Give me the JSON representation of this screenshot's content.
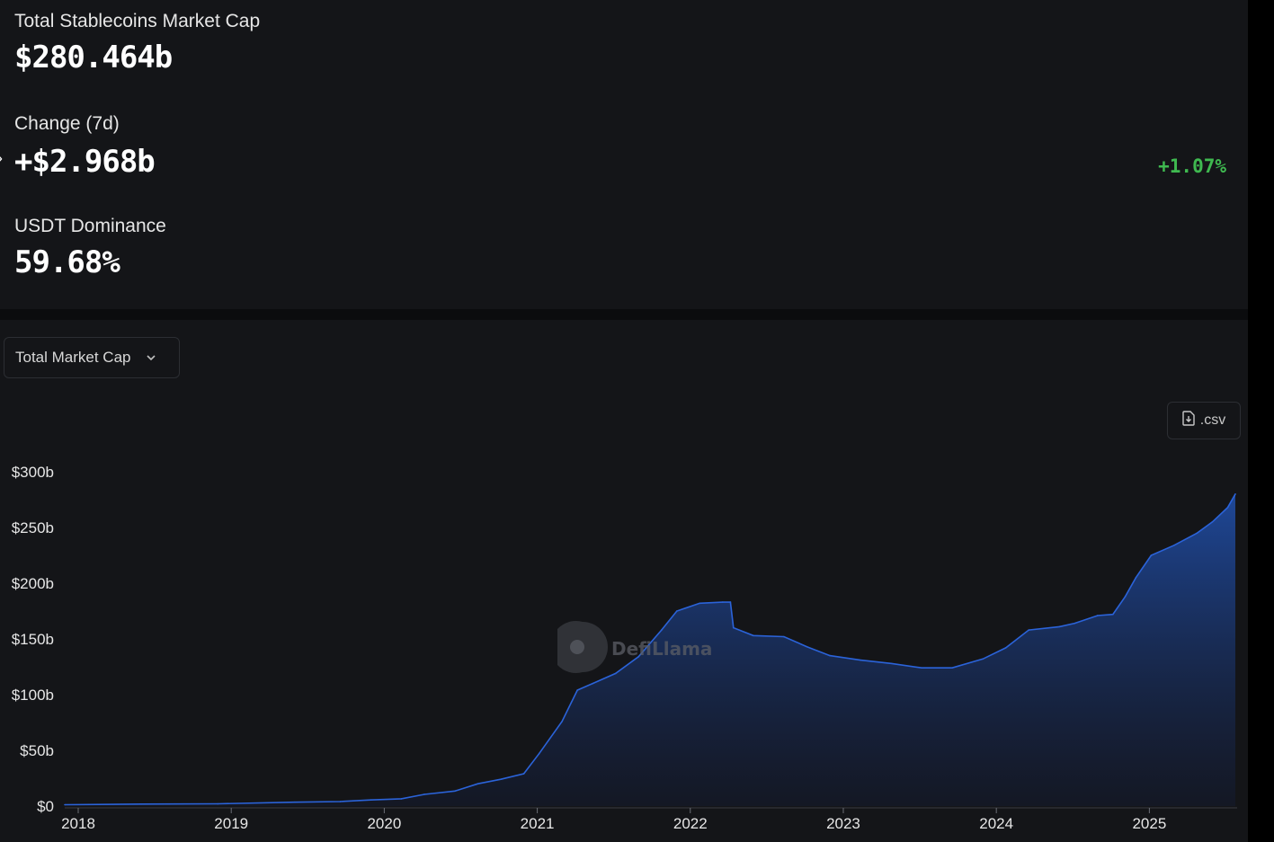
{
  "stats": {
    "market_cap_label": "Total Stablecoins Market Cap",
    "market_cap_value": "$280.464b",
    "change_label": "Change (7d)",
    "change_value": "+$2.968b",
    "change_pct": "+1.07%",
    "dominance_label": "USDT Dominance",
    "dominance_value": "59.68%"
  },
  "controls": {
    "metric_select": "Total Market Cap",
    "csv_label": ".csv"
  },
  "watermark": "DefiLlama",
  "colors": {
    "line": "#2b63d9",
    "area_top": "#1f4a9e",
    "positive": "#3fb950"
  },
  "chart_data": {
    "type": "area",
    "ylim": [
      0,
      300
    ],
    "yticks": [
      "$0",
      "$50b",
      "$100b",
      "$150b",
      "$200b",
      "$250b",
      "$300b"
    ],
    "xticks": [
      "2018",
      "2019",
      "2020",
      "2021",
      "2022",
      "2023",
      "2024",
      "2025"
    ],
    "grid": false,
    "x": [
      2018.0,
      2018.5,
      2019.0,
      2019.5,
      2019.8,
      2020.0,
      2020.2,
      2020.35,
      2020.55,
      2020.7,
      2020.85,
      2021.0,
      2021.1,
      2021.25,
      2021.35,
      2021.45,
      2021.6,
      2021.75,
      2021.9,
      2022.0,
      2022.15,
      2022.3,
      2022.35,
      2022.37,
      2022.5,
      2022.7,
      2022.85,
      2023.0,
      2023.2,
      2023.4,
      2023.6,
      2023.8,
      2024.0,
      2024.15,
      2024.3,
      2024.5,
      2024.6,
      2024.75,
      2024.85,
      2024.93,
      2025.0,
      2025.1,
      2025.25,
      2025.4,
      2025.5,
      2025.6,
      2025.65
    ],
    "values": [
      1.2,
      1.8,
      2.0,
      3.5,
      4.0,
      5.5,
      6.5,
      10.5,
      13.5,
      20.0,
      24.0,
      29.0,
      47.0,
      76.0,
      104.0,
      110.0,
      119.0,
      134.0,
      158.0,
      175.0,
      182.0,
      183.0,
      183.0,
      160.0,
      153.0,
      152.0,
      143.0,
      135.0,
      131.0,
      128.0,
      124.0,
      124.0,
      132.0,
      142.0,
      158.0,
      161.0,
      164.0,
      171.0,
      172.0,
      188.0,
      205.0,
      225.0,
      234.0,
      245.0,
      255.0,
      268.0,
      280.0
    ]
  }
}
